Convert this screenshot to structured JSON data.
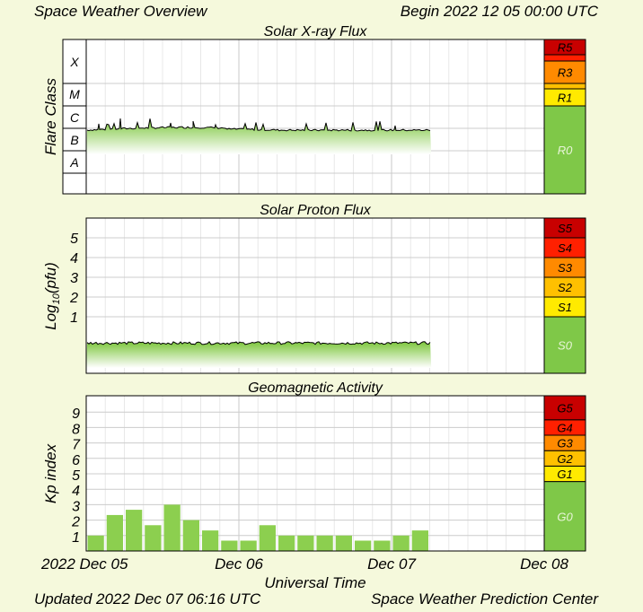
{
  "header": {
    "title": "Space Weather Overview",
    "begin": "Begin 2022 12 05 00:00 UTC",
    "updated": "Updated 2022 Dec 07 06:16 UTC",
    "source": "Space Weather Prediction Center"
  },
  "colors": {
    "background": "#f5f9dc",
    "green_bar": "#8ccf4f",
    "scale_0": "#7fc848",
    "scale_1": "#ffea00",
    "scale_2": "#ffc000",
    "scale_3": "#ff8a00",
    "scale_4": "#ff2000",
    "scale_5": "#c80000"
  },
  "chart_data": [
    {
      "type": "area",
      "title": "Solar X-ray Flux",
      "ylabel": "Flare Class",
      "y_classes": [
        "A",
        "B",
        "C",
        "M",
        "X"
      ],
      "scale": {
        "labels": [
          "R0",
          "R1",
          "R3",
          "R5"
        ],
        "levels": [
          0,
          1,
          3,
          5
        ]
      },
      "x_start_days": 0,
      "x_end_days": 2.26,
      "level_class_position": "low B to mid B (log flux ~ -6.8)"
    },
    {
      "type": "area",
      "title": "Solar Proton Flux",
      "ylabel": "Log10(pfu)",
      "ylabel_base": "Log",
      "ylabel_sub": "10",
      "ylabel_tail": "(pfu)",
      "y_ticks": [
        "1",
        "2",
        "3",
        "4",
        "5"
      ],
      "scale": {
        "labels": [
          "S0",
          "S1",
          "S2",
          "S3",
          "S4",
          "S5"
        ],
        "levels": [
          0,
          1,
          2,
          3,
          4,
          5
        ]
      },
      "x_start_days": 0,
      "x_end_days": 2.26,
      "log_pfu_level": -0.4
    },
    {
      "type": "bar",
      "title": "Geomagnetic Activity",
      "ylabel": "Kp index",
      "y_ticks": [
        "1",
        "2",
        "3",
        "4",
        "5",
        "6",
        "7",
        "8",
        "9"
      ],
      "scale": {
        "labels": [
          "G0",
          "G1",
          "G2",
          "G3",
          "G4",
          "G5"
        ],
        "levels": [
          0,
          5,
          6,
          7,
          8,
          9
        ]
      },
      "bar_interval_hours": 3,
      "values": [
        1.0,
        2.33,
        2.67,
        1.67,
        3.0,
        2.0,
        1.33,
        0.67,
        0.67,
        1.67,
        1.0,
        1.0,
        1.0,
        1.0,
        0.67,
        0.67,
        1.0,
        1.33
      ]
    }
  ],
  "xaxis": {
    "label": "Universal Time",
    "ticks": [
      "2022 Dec 05",
      "Dec 06",
      "Dec 07",
      "Dec 08"
    ]
  }
}
